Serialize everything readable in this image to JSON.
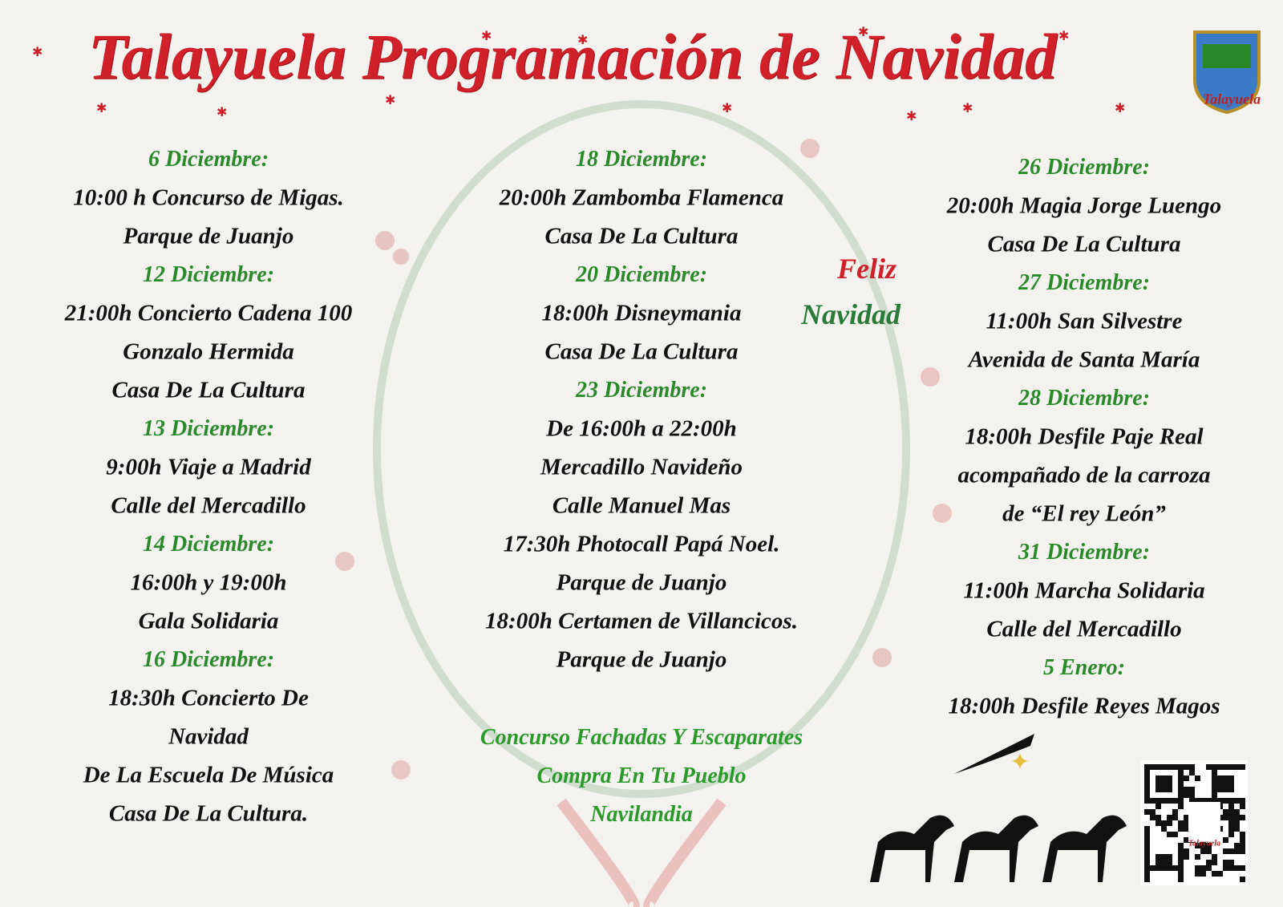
{
  "header": {
    "title": "Talayuela Programación de Navidad"
  },
  "columns": [
    [
      {
        "date": "6 Diciembre:",
        "lines": [
          "10:00 h Concurso de Migas.",
          "Parque de Juanjo"
        ]
      },
      {
        "date": "12 Diciembre:",
        "lines": [
          "21:00h Concierto Cadena 100",
          "Gonzalo Hermida",
          "Casa De La Cultura"
        ]
      },
      {
        "date": "13 Diciembre:",
        "lines": [
          "9:00h Viaje a Madrid",
          "Calle del Mercadillo"
        ]
      },
      {
        "date": "14 Diciembre:",
        "lines": [
          "16:00h y 19:00h",
          "Gala Solidaria"
        ]
      },
      {
        "date": "16 Diciembre:",
        "lines": [
          "18:30h Concierto De",
          "Navidad",
          "De La Escuela De Música",
          "Casa De La Cultura."
        ]
      }
    ],
    [
      {
        "date": "18 Diciembre:",
        "lines": [
          "20:00h Zambomba Flamenca",
          "Casa De La Cultura"
        ]
      },
      {
        "date": "20 Diciembre:",
        "lines": [
          "18:00h Disneymania",
          "Casa De La Cultura"
        ]
      },
      {
        "date": "23 Diciembre:",
        "lines": [
          "De 16:00h a 22:00h",
          "Mercadillo Navideño",
          "Calle Manuel Mas",
          "17:30h Photocall Papá Noel.",
          "Parque de Juanjo",
          "18:00h Certamen de Villancicos.",
          "Parque de Juanjo"
        ]
      }
    ],
    [
      {
        "date": "26 Diciembre:",
        "lines": [
          "20:00h Magia Jorge Luengo",
          "Casa De La Cultura"
        ]
      },
      {
        "date": "27 Diciembre:",
        "lines": [
          "11:00h San Silvestre",
          "Avenida de Santa María"
        ]
      },
      {
        "date": "28 Diciembre:",
        "lines": [
          "18:00h Desfile Paje Real",
          "acompañado de la carroza",
          "de “El rey León”"
        ]
      },
      {
        "date": "31 Diciembre:",
        "lines": [
          "11:00h Marcha Solidaria",
          "Calle del Mercadillo"
        ]
      },
      {
        "date": "5 Enero:",
        "lines": [
          "18:00h Desfile Reyes Magos"
        ]
      }
    ]
  ],
  "promo": [
    "Concurso Fachadas Y Escaparates",
    "Compra En Tu Pueblo",
    "Navilandia"
  ],
  "greeting": [
    "Feliz",
    "Navidad"
  ],
  "logo": {
    "label": "Talayuela"
  },
  "qr": {
    "label": "Talayuela"
  }
}
